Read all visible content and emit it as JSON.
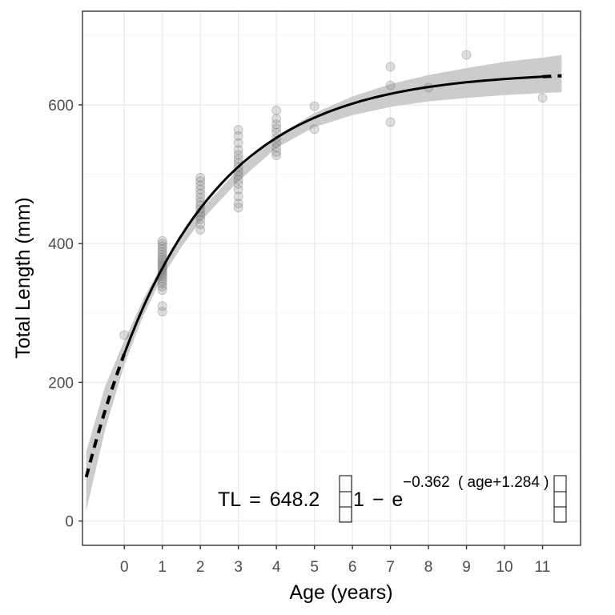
{
  "chart_data": {
    "type": "scatter",
    "xlabel": "Age (years)",
    "ylabel": "Total Length (mm)",
    "xlim": [
      -1.1,
      12.0
    ],
    "ylim": [
      -35,
      735
    ],
    "x_ticks": [
      0,
      1,
      2,
      3,
      4,
      5,
      6,
      7,
      8,
      9,
      10,
      11
    ],
    "y_ticks": [
      0,
      200,
      400,
      600
    ],
    "grid": true,
    "colors": {
      "points": "#808080",
      "fit": "#000000",
      "ci_band": "#cccccc",
      "grid": "#ebebeb",
      "border": "#333333"
    },
    "fit": {
      "Linf": 648.2,
      "K": 0.362,
      "t0": -1.284,
      "observed_range": [
        0,
        11
      ],
      "extrapolated_range": [
        -1,
        11.5
      ],
      "ci_band": [
        {
          "x": -1.0,
          "lower": 15,
          "upper": 100
        },
        {
          "x": -0.5,
          "lower": 133,
          "upper": 195
        },
        {
          "x": 0.0,
          "lower": 225,
          "upper": 260
        },
        {
          "x": 0.5,
          "lower": 296,
          "upper": 320
        },
        {
          "x": 1.0,
          "lower": 352,
          "upper": 370
        },
        {
          "x": 1.5,
          "lower": 395,
          "upper": 412
        },
        {
          "x": 2.0,
          "lower": 432,
          "upper": 448
        },
        {
          "x": 3.0,
          "lower": 490,
          "upper": 507
        },
        {
          "x": 4.0,
          "lower": 538,
          "upper": 555
        },
        {
          "x": 5.0,
          "lower": 568,
          "upper": 588
        },
        {
          "x": 6.0,
          "lower": 585,
          "upper": 612
        },
        {
          "x": 7.0,
          "lower": 597,
          "upper": 630
        },
        {
          "x": 8.0,
          "lower": 605,
          "upper": 643
        },
        {
          "x": 9.0,
          "lower": 610,
          "upper": 653
        },
        {
          "x": 10.0,
          "lower": 614,
          "upper": 662
        },
        {
          "x": 11.0,
          "lower": 617,
          "upper": 668
        },
        {
          "x": 11.5,
          "lower": 618,
          "upper": 672
        }
      ]
    },
    "points": [
      [
        0,
        268
      ],
      [
        1,
        302
      ],
      [
        1,
        310
      ],
      [
        1,
        333
      ],
      [
        1,
        338
      ],
      [
        1,
        342
      ],
      [
        1,
        346
      ],
      [
        1,
        350
      ],
      [
        1,
        353
      ],
      [
        1,
        356
      ],
      [
        1,
        359
      ],
      [
        1,
        362
      ],
      [
        1,
        365
      ],
      [
        1,
        368
      ],
      [
        1,
        371
      ],
      [
        1,
        374
      ],
      [
        1,
        377
      ],
      [
        1,
        380
      ],
      [
        1,
        384
      ],
      [
        1,
        388
      ],
      [
        1,
        392
      ],
      [
        1,
        396
      ],
      [
        1,
        400
      ],
      [
        1,
        404
      ],
      [
        2,
        420
      ],
      [
        2,
        428
      ],
      [
        2,
        435
      ],
      [
        2,
        440
      ],
      [
        2,
        445
      ],
      [
        2,
        450
      ],
      [
        2,
        455
      ],
      [
        2,
        460
      ],
      [
        2,
        466
      ],
      [
        2,
        472
      ],
      [
        2,
        478
      ],
      [
        2,
        484
      ],
      [
        2,
        490
      ],
      [
        2,
        495
      ],
      [
        3,
        452
      ],
      [
        3,
        458
      ],
      [
        3,
        468
      ],
      [
        3,
        478
      ],
      [
        3,
        486
      ],
      [
        3,
        492
      ],
      [
        3,
        498
      ],
      [
        3,
        504
      ],
      [
        3,
        510
      ],
      [
        3,
        516
      ],
      [
        3,
        522
      ],
      [
        3,
        528
      ],
      [
        3,
        535
      ],
      [
        3,
        545
      ],
      [
        3,
        555
      ],
      [
        3,
        564
      ],
      [
        4,
        527
      ],
      [
        4,
        532
      ],
      [
        4,
        538
      ],
      [
        4,
        545
      ],
      [
        4,
        552
      ],
      [
        4,
        560
      ],
      [
        4,
        566
      ],
      [
        4,
        572
      ],
      [
        4,
        580
      ],
      [
        4,
        592
      ],
      [
        5,
        565
      ],
      [
        5,
        598
      ],
      [
        7,
        575
      ],
      [
        7,
        628
      ],
      [
        7,
        655
      ],
      [
        8,
        625
      ],
      [
        9,
        672
      ],
      [
        11,
        610
      ]
    ],
    "equation": {
      "lhs": "TL",
      "eq_sign": "=",
      "Linf": "648.2",
      "one": "1",
      "minus": "−",
      "e": "e",
      "exponent_k": "−0.362",
      "exponent_inner": "age+1.284"
    }
  }
}
